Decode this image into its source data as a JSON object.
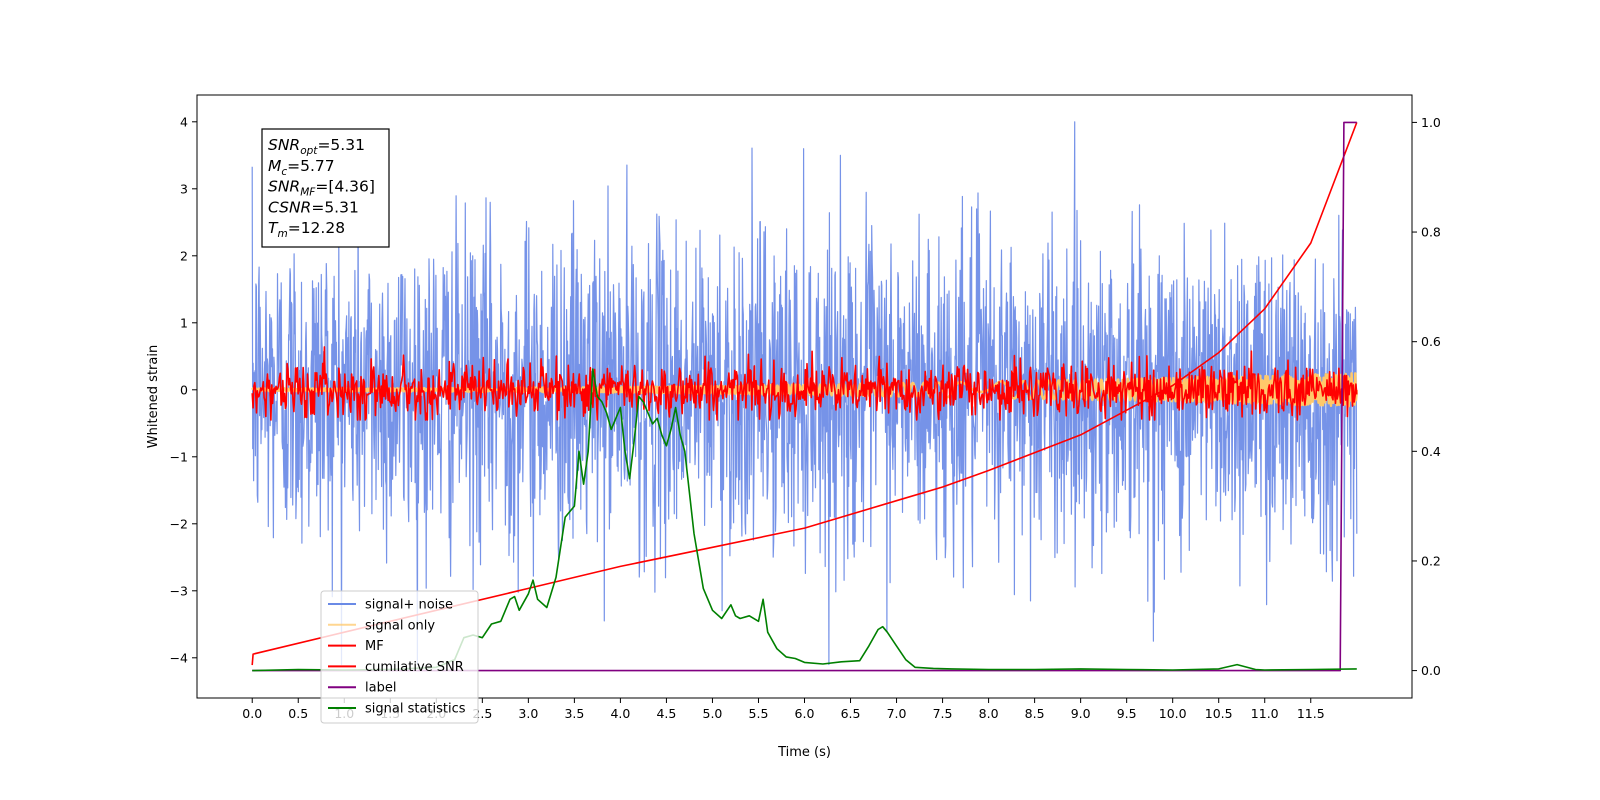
{
  "chart_data": {
    "type": "line",
    "xlabel": "Time (s)",
    "ylabel": "Whitened strain",
    "xlim": [
      -0.6,
      12.6
    ],
    "ylim": [
      -4.6,
      4.4
    ],
    "y2lim": [
      -0.05,
      1.05
    ],
    "x_ticks": [
      "0.0",
      "0.5",
      "1.0",
      "1.5",
      "2.0",
      "2.5",
      "3.0",
      "3.5",
      "4.0",
      "4.5",
      "5.0",
      "5.5",
      "6.0",
      "6.5",
      "7.0",
      "7.5",
      "8.0",
      "8.5",
      "9.0",
      "9.5",
      "10.0",
      "10.5",
      "11.0",
      "11.5"
    ],
    "y_ticks": [
      "4",
      "3",
      "2",
      "1",
      "0",
      "−1",
      "−2",
      "−3",
      "−4"
    ],
    "y2_ticks": [
      "1.0",
      "0.8",
      "0.6",
      "0.4",
      "0.2",
      "0.0"
    ],
    "annotation": [
      {
        "sym": "SNR",
        "sub": "opt",
        "value": "=5.31"
      },
      {
        "sym": "M",
        "sub": "c",
        "value": "=5.77"
      },
      {
        "sym": "SNR",
        "sub": "MF",
        "value": "=[4.36]"
      },
      {
        "sym": "CSNR",
        "sub": "",
        "value": "=5.31"
      },
      {
        "sym": "T",
        "sub": "m",
        "value": "=12.28"
      }
    ],
    "series": [
      {
        "name": "signal+ noise",
        "color": "#6a8ae6",
        "axis": "left",
        "kind": "noise",
        "x_start": 0.0,
        "x_end": 12.0,
        "std": 1.0
      },
      {
        "name": "signal only",
        "color": "#ffc96b",
        "axis": "left",
        "kind": "chirp",
        "x_start": 0.0,
        "x_end": 12.0,
        "amp_start": 0.02,
        "amp_end": 0.25
      },
      {
        "name": "MF",
        "color": "#ff0000",
        "axis": "left",
        "kind": "noise",
        "x_start": 0.0,
        "x_end": 12.0,
        "std": 0.2
      },
      {
        "name": "cumilative SNR",
        "color": "#ff0000",
        "axis": "right",
        "x": [
          0.0,
          0.01,
          1.0,
          2.0,
          3.0,
          4.0,
          5.0,
          6.0,
          7.0,
          7.5,
          8.0,
          9.0,
          10.0,
          10.5,
          11.0,
          11.5,
          12.0
        ],
        "y": [
          0.01,
          0.03,
          0.07,
          0.11,
          0.15,
          0.19,
          0.225,
          0.26,
          0.31,
          0.335,
          0.365,
          0.43,
          0.52,
          0.58,
          0.66,
          0.78,
          1.0
        ]
      },
      {
        "name": "label",
        "color": "#800080",
        "axis": "right",
        "x": [
          0.0,
          11.82,
          11.86,
          11.9,
          12.0
        ],
        "y": [
          0.0,
          0.0,
          1.0,
          1.0,
          1.0
        ]
      },
      {
        "name": "signal statistics",
        "color": "#008000",
        "axis": "right",
        "x": [
          0.0,
          0.5,
          1.0,
          1.5,
          2.0,
          2.2,
          2.3,
          2.4,
          2.5,
          2.6,
          2.7,
          2.8,
          2.85,
          2.9,
          3.0,
          3.05,
          3.1,
          3.2,
          3.3,
          3.4,
          3.5,
          3.55,
          3.6,
          3.65,
          3.7,
          3.75,
          3.8,
          3.85,
          3.9,
          3.95,
          4.0,
          4.05,
          4.1,
          4.15,
          4.2,
          4.25,
          4.3,
          4.35,
          4.4,
          4.45,
          4.5,
          4.55,
          4.6,
          4.65,
          4.7,
          4.8,
          4.9,
          5.0,
          5.1,
          5.2,
          5.25,
          5.3,
          5.4,
          5.5,
          5.55,
          5.6,
          5.7,
          5.8,
          5.9,
          6.0,
          6.2,
          6.4,
          6.6,
          6.7,
          6.8,
          6.85,
          6.9,
          7.0,
          7.1,
          7.2,
          7.4,
          7.6,
          8.0,
          8.5,
          9.0,
          9.5,
          10.0,
          10.5,
          10.7,
          10.9,
          11.0,
          11.5,
          12.0
        ],
        "y": [
          0.0,
          0.002,
          0.001,
          0.002,
          0.006,
          0.02,
          0.06,
          0.065,
          0.06,
          0.085,
          0.09,
          0.13,
          0.135,
          0.11,
          0.14,
          0.165,
          0.13,
          0.115,
          0.17,
          0.28,
          0.3,
          0.4,
          0.34,
          0.4,
          0.55,
          0.5,
          0.49,
          0.47,
          0.44,
          0.46,
          0.48,
          0.4,
          0.35,
          0.42,
          0.5,
          0.49,
          0.47,
          0.45,
          0.46,
          0.43,
          0.41,
          0.44,
          0.48,
          0.43,
          0.4,
          0.25,
          0.15,
          0.11,
          0.095,
          0.12,
          0.1,
          0.095,
          0.1,
          0.09,
          0.13,
          0.07,
          0.04,
          0.025,
          0.022,
          0.015,
          0.012,
          0.016,
          0.018,
          0.045,
          0.075,
          0.08,
          0.07,
          0.045,
          0.02,
          0.006,
          0.004,
          0.003,
          0.002,
          0.002,
          0.003,
          0.002,
          0.001,
          0.003,
          0.011,
          0.002,
          0.001,
          0.002,
          0.003
        ]
      }
    ],
    "legend_position": "lower-left"
  }
}
